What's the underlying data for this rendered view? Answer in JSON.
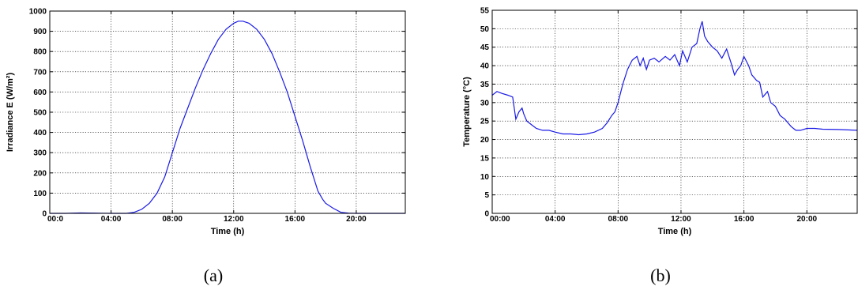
{
  "chart_data": [
    {
      "type": "line",
      "title": "",
      "xlabel": "Time  (h)",
      "ylabel": "Irradiance E (W/m²)",
      "panel_label": "(a)",
      "xlim": [
        0,
        23.2
      ],
      "ylim": [
        0,
        1000
      ],
      "x_ticks": [
        0,
        4,
        8,
        12,
        16,
        20
      ],
      "x_tick_labels": [
        "00:0",
        "04:00",
        "08:00",
        "12:00",
        "16:00",
        "20:00"
      ],
      "y_ticks": [
        0,
        100,
        200,
        300,
        400,
        500,
        600,
        700,
        800,
        900,
        1000
      ],
      "y_tick_labels": [
        "0",
        "100",
        "200",
        "300",
        "400",
        "500",
        "600",
        "700",
        "800",
        "900",
        "1000"
      ],
      "grid": true,
      "color": "#1a1ae6",
      "series": [
        {
          "x": [
            0,
            1,
            2,
            3,
            4,
            5,
            5.5,
            6,
            6.5,
            7,
            7.5,
            8,
            8.5,
            9,
            9.5,
            10,
            10.5,
            11,
            11.5,
            12,
            12.3,
            12.6,
            13,
            13.5,
            14,
            14.5,
            15,
            15.5,
            16,
            16.5,
            17,
            17.5,
            17.8,
            18,
            18.5,
            19,
            19.5,
            20,
            21,
            22,
            23.2
          ],
          "y": [
            0,
            0,
            2,
            1,
            0,
            0,
            5,
            20,
            50,
            100,
            180,
            300,
            420,
            520,
            620,
            710,
            790,
            860,
            910,
            940,
            950,
            950,
            940,
            910,
            860,
            790,
            700,
            600,
            480,
            360,
            230,
            110,
            70,
            50,
            25,
            5,
            1,
            0,
            0,
            0,
            0
          ]
        }
      ]
    },
    {
      "type": "line",
      "title": "",
      "xlabel": "Time  (h)",
      "ylabel": "Temperature (°C)",
      "panel_label": "(b)",
      "xlim": [
        0,
        23.2
      ],
      "ylim": [
        0,
        55
      ],
      "x_ticks": [
        0,
        4,
        8,
        12,
        16,
        20
      ],
      "x_tick_labels": [
        "00:00",
        "04:00",
        "08:00",
        "12:00",
        "16:00",
        "20:00"
      ],
      "y_ticks": [
        0,
        5,
        10,
        15,
        20,
        25,
        30,
        35,
        40,
        45,
        50,
        55
      ],
      "y_tick_labels": [
        "0",
        "5",
        "10",
        "15",
        "20",
        "25",
        "30",
        "35",
        "40",
        "45",
        "50",
        "55"
      ],
      "grid": true,
      "color": "#1a1ae6",
      "series": [
        {
          "x": [
            0,
            0.3,
            0.6,
            1.0,
            1.3,
            1.5,
            1.7,
            1.9,
            2.0,
            2.2,
            2.5,
            2.8,
            3.2,
            3.6,
            4.0,
            4.5,
            5.0,
            5.5,
            6.0,
            6.5,
            7.0,
            7.3,
            7.6,
            7.8,
            8.0,
            8.3,
            8.6,
            8.9,
            9.2,
            9.4,
            9.6,
            9.8,
            10.0,
            10.3,
            10.6,
            11.0,
            11.3,
            11.6,
            11.9,
            12.1,
            12.4,
            12.7,
            13.0,
            13.2,
            13.35,
            13.5,
            13.7,
            14.0,
            14.3,
            14.6,
            14.9,
            15.2,
            15.4,
            15.6,
            15.8,
            16.0,
            16.3,
            16.5,
            16.8,
            17.0,
            17.2,
            17.5,
            17.7,
            18.0,
            18.3,
            18.6,
            19.0,
            19.3,
            19.6,
            20.0,
            20.5,
            21.0,
            22.0,
            23.2
          ],
          "y": [
            32,
            33,
            32.5,
            32,
            31.5,
            25.5,
            27.5,
            28.5,
            27,
            25,
            24,
            23,
            22.5,
            22.5,
            22,
            21.5,
            21.5,
            21.3,
            21.5,
            22,
            23,
            24.5,
            26.5,
            27.5,
            30,
            35,
            39,
            41.5,
            42.5,
            40,
            42,
            39,
            41.5,
            42,
            41,
            42.5,
            41.5,
            43,
            40,
            44,
            41,
            45,
            46,
            50,
            52,
            48,
            46.5,
            45,
            44,
            42,
            44.5,
            40.5,
            37.5,
            39,
            40,
            42.5,
            40,
            37.5,
            36,
            35.5,
            31.5,
            33,
            30,
            29,
            26.5,
            25.5,
            23.5,
            22.5,
            22.5,
            23,
            23,
            22.8,
            22.7,
            22.5
          ]
        }
      ]
    }
  ]
}
